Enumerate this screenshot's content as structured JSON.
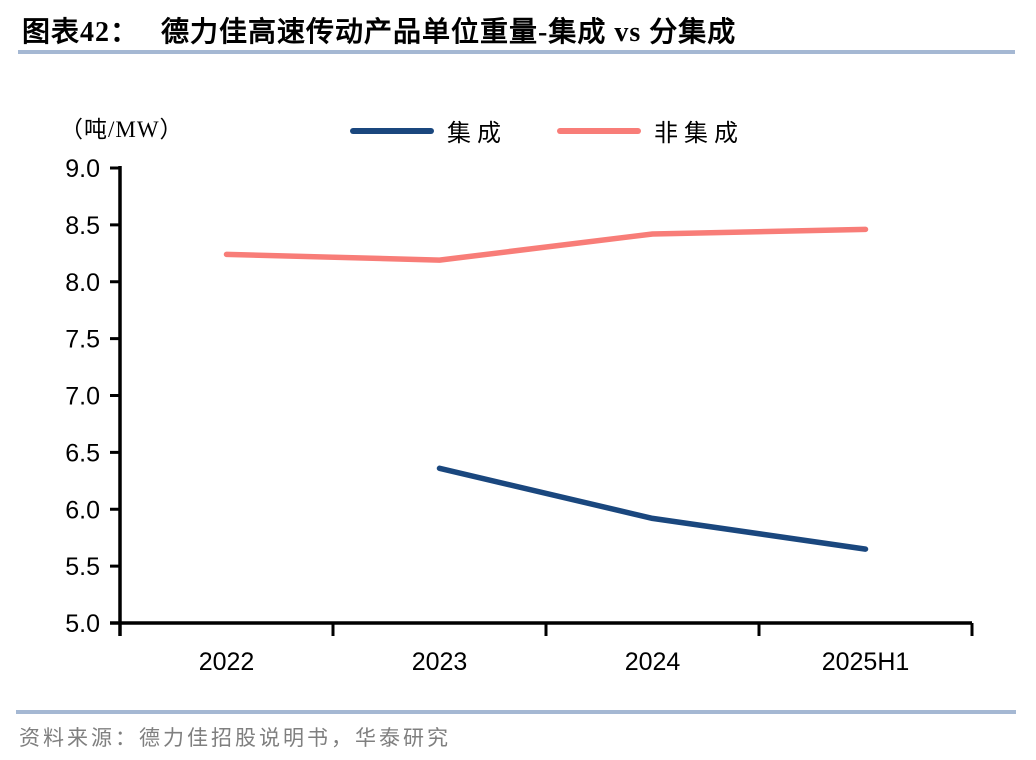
{
  "header": {
    "figure_label": "图表42：",
    "title": "德力佳高速传动产品单位重量-集成 vs 分集成"
  },
  "chart_data": {
    "type": "line",
    "title": "德力佳高速传动产品单位重量-集成 vs 分集成",
    "unit_label": "（吨/MW）",
    "categories": [
      "2022",
      "2023",
      "2024",
      "2025H1"
    ],
    "series": [
      {
        "name": "集成",
        "color": "#1a477e",
        "values": [
          null,
          6.36,
          5.92,
          5.65
        ]
      },
      {
        "name": "非集成",
        "color": "#f87d78",
        "values": [
          8.24,
          8.19,
          8.42,
          8.46
        ]
      }
    ],
    "ylim": [
      5.0,
      9.0
    ],
    "y_ticks": [
      "5.0",
      "5.5",
      "6.0",
      "6.5",
      "7.0",
      "7.5",
      "8.0",
      "8.5",
      "9.0"
    ],
    "xlabel": "",
    "ylabel": "（吨/MW）",
    "legend_position": "top",
    "grid": false
  },
  "footer": {
    "source": "资料来源：德力佳招股说明书，华泰研究"
  },
  "colors": {
    "divider_blue": "#a5b8d3",
    "axis_black": "#000000",
    "footer_gray": "#7f7f7f"
  }
}
